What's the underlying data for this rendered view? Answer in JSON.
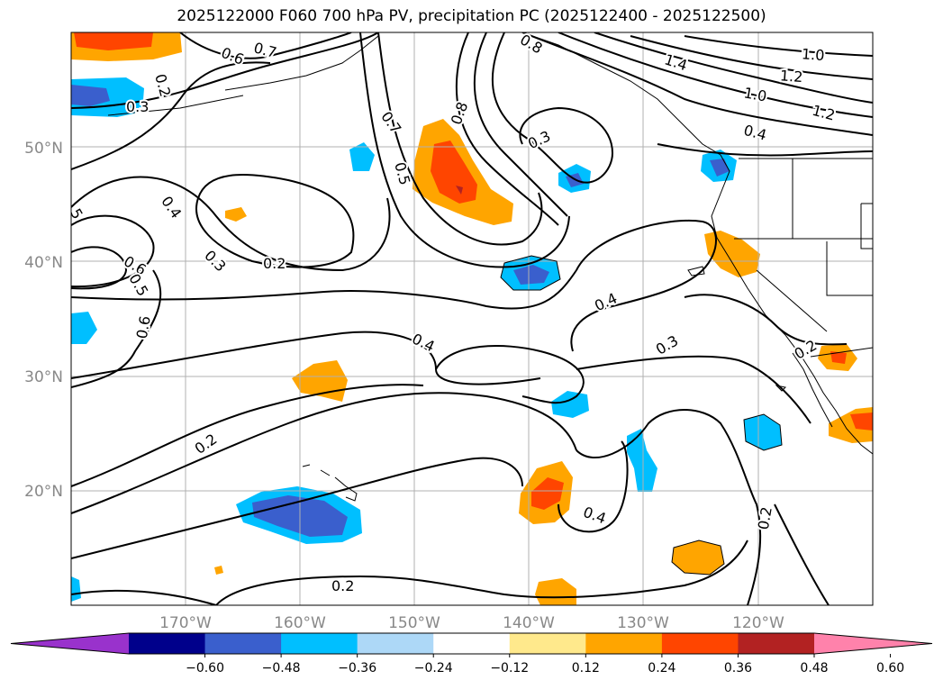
{
  "title": "2025122000 F060 700 hPa PV, precipitation PC (2025122400 - 2025122500)",
  "chart_data": {
    "type": "heatmap",
    "title": "2025122000 F060 700 hPa PV, precipitation PC (2025122400 - 2025122500)",
    "xlim": [
      "180°W",
      "110°W"
    ],
    "ylim": [
      "10°N",
      "60°N"
    ],
    "lat_ticks": [
      "20°N",
      "30°N",
      "40°N",
      "50°N"
    ],
    "lon_ticks": [
      "170°W",
      "160°W",
      "150°W",
      "140°W",
      "130°W",
      "120°W"
    ],
    "grid": true,
    "colorbar": {
      "orientation": "horizontal",
      "extend": "both",
      "ticks": [
        "−0.60",
        "−0.48",
        "−0.36",
        "−0.24",
        "−0.12",
        "0.12",
        "0.24",
        "0.36",
        "0.48",
        "0.60"
      ],
      "colors": [
        "#9932CC",
        "#00008B",
        "#3A5FCD",
        "#00BFFF",
        "#ADD8F7",
        "#FFFFFF",
        "#FFE98C",
        "#FFA500",
        "#FF4500",
        "#B22222",
        "#FF82AB"
      ]
    },
    "contour_labels": [
      "0.6",
      "0.7",
      "0.8",
      "1.4",
      "1.0",
      "1.2",
      "1.0",
      "1.2",
      "0.2",
      "0.3",
      "0.3",
      "0.7",
      "0.8",
      "0.5",
      "0.4",
      "0.4",
      "0.3",
      "0.2",
      "0.6",
      "0.5",
      "0.6",
      "0.4",
      "0.4",
      "0.3",
      "0.2",
      "0.4",
      "0.2",
      "0.2",
      "0.2",
      "5"
    ]
  }
}
